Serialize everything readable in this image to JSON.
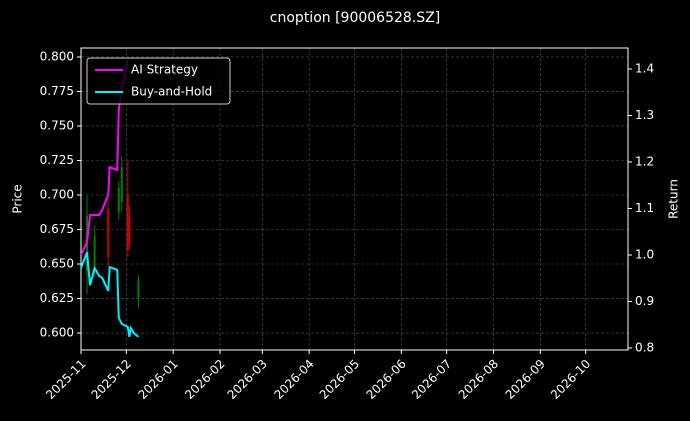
{
  "chart_data": {
    "type": "line",
    "title": "cnoption [90006528.SZ]",
    "y_label": "Price",
    "y2_label": "Return",
    "x": [
      "2025-11-01",
      "2025-11-05",
      "2025-11-07",
      "2025-11-10",
      "2025-11-13",
      "2025-11-15",
      "2025-11-19",
      "2025-11-20",
      "2025-11-25",
      "2025-11-26",
      "2025-11-28",
      "2025-12-02",
      "2025-12-03",
      "2025-12-04",
      "2025-12-06",
      "2025-12-09"
    ],
    "series": [
      {
        "name": "AI Strategy",
        "color": "#ff00ff",
        "axis": "y2",
        "values": [
          1.0,
          1.028,
          1.086,
          1.086,
          1.086,
          1.097,
          1.129,
          1.189,
          1.183,
          1.312,
          1.355,
          1.419,
          null,
          null,
          null,
          null
        ]
      },
      {
        "name": "Buy-and-Hold",
        "color": "#00f0ff",
        "axis": "y2",
        "values": [
          0.972,
          1.006,
          0.935,
          0.972,
          0.955,
          0.951,
          0.923,
          0.974,
          0.968,
          0.865,
          0.852,
          0.845,
          0.824,
          0.843,
          0.832,
          0.824
        ]
      }
    ],
    "candles": {
      "up_color": "#008000",
      "down_color": "#cc0000",
      "x": [
        "2025-11-05",
        "2025-11-10",
        "2025-11-19",
        "2025-11-26",
        "2025-11-28",
        "2025-12-02",
        "2025-12-03",
        "2025-12-09"
      ],
      "open": [
        0.645,
        0.648,
        0.69,
        0.688,
        0.695,
        0.7,
        0.685,
        0.625
      ],
      "high": [
        0.7,
        0.678,
        0.697,
        0.71,
        0.728,
        0.725,
        0.692,
        0.642
      ],
      "low": [
        0.628,
        0.64,
        0.648,
        0.682,
        0.688,
        0.655,
        0.66,
        0.618
      ],
      "close": [
        0.685,
        0.67,
        0.655,
        0.705,
        0.72,
        0.66,
        0.665,
        0.638
      ]
    },
    "xlim": [
      "2025-11-01",
      "2026-10-29"
    ],
    "xticks": [
      "2025-11",
      "2025-12",
      "2026-01",
      "2026-02",
      "2026-03",
      "2026-04",
      "2026-05",
      "2026-06",
      "2026-07",
      "2026-08",
      "2026-09",
      "2026-10"
    ],
    "ylim": [
      0.5877,
      0.8065
    ],
    "yticks": [
      {
        "value": 0.6,
        "label": "0.600"
      },
      0.625,
      {
        "value": 0.65,
        "label": "0.650"
      },
      0.675,
      {
        "value": 0.7,
        "label": "0.700"
      },
      0.725,
      {
        "value": 0.75,
        "label": "0.750"
      },
      0.775,
      {
        "value": 0.8,
        "label": "0.800"
      }
    ],
    "y2lim": [
      0.7957,
      1.4452
    ],
    "y2ticks": [
      0.8,
      0.9,
      {
        "value": 1.0,
        "label": "1.0"
      },
      1.1,
      1.2,
      1.3,
      1.4
    ],
    "grid": true,
    "legend": "upper-left"
  }
}
